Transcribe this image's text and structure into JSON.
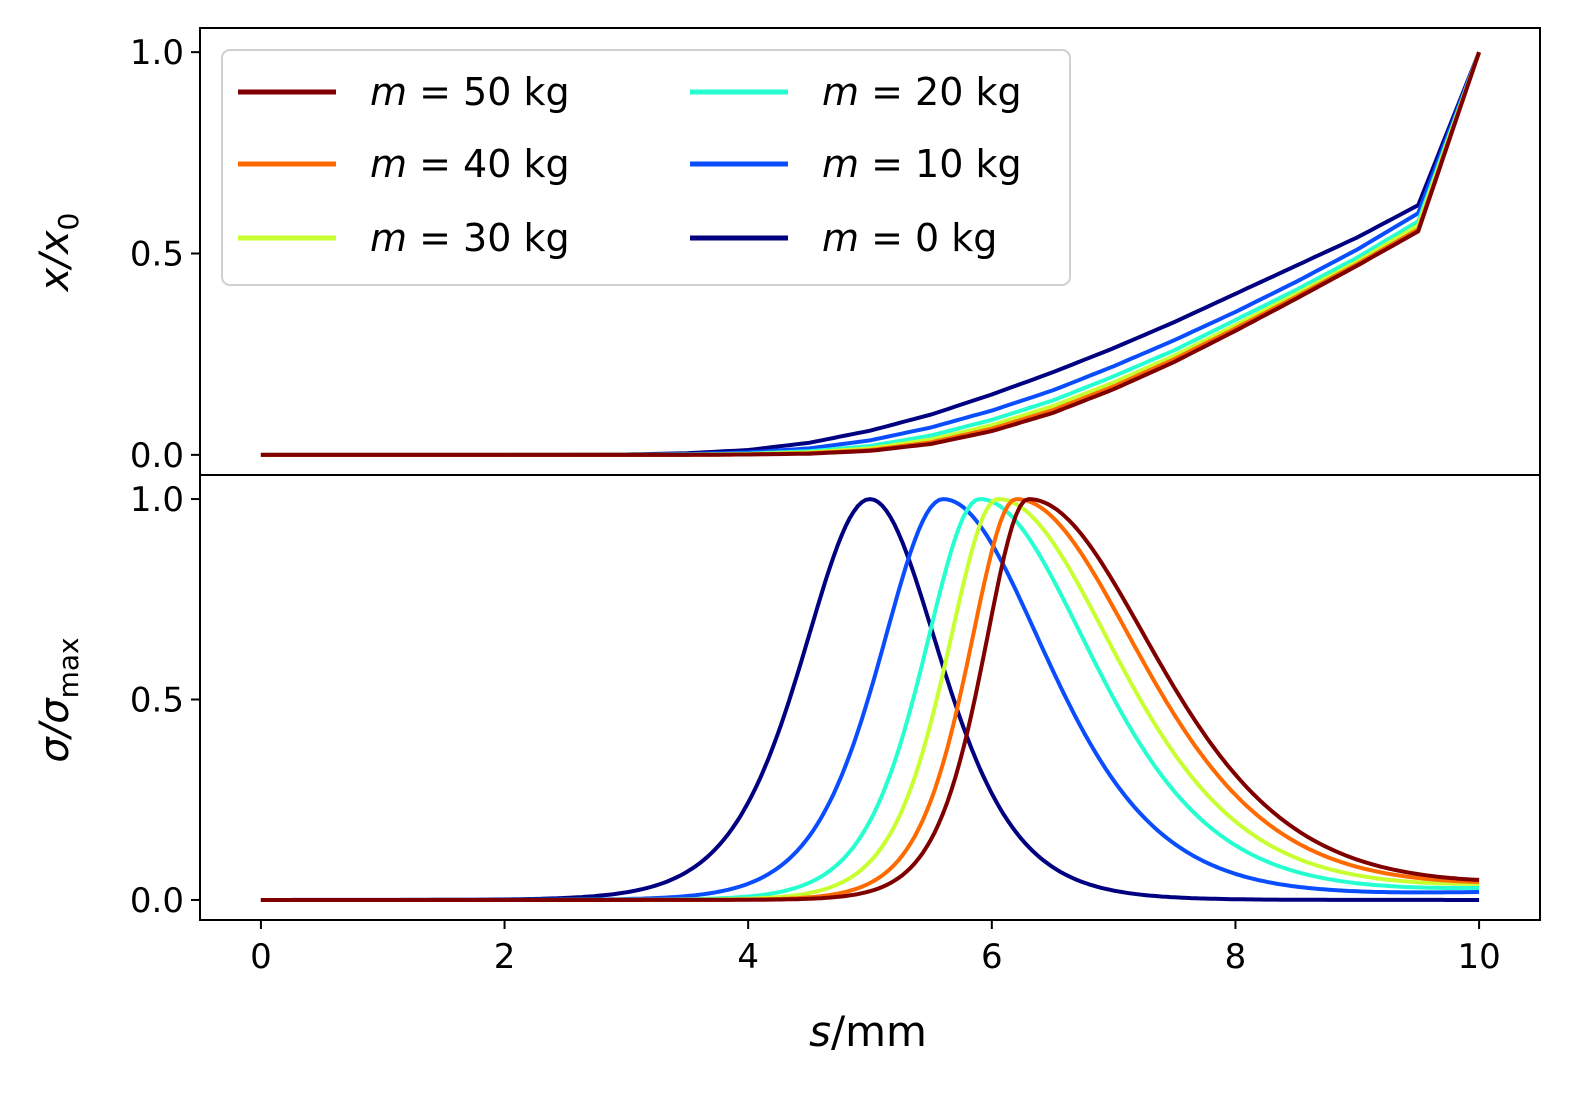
{
  "chart_data": [
    {
      "type": "line",
      "panel": "top",
      "ylabel": "x/x",
      "ylabel_sub": "0",
      "xlim": [
        -0.5,
        10.5
      ],
      "ylim": [
        -0.05,
        1.06
      ],
      "yticks": [
        0.0,
        0.5,
        1.0
      ],
      "ytick_labels": [
        "0.0",
        "0.5",
        "1.0"
      ],
      "legend": {
        "placement": "top-left",
        "columns": 2,
        "entries": [
          {
            "var": "m",
            "rest": " = 50 kg",
            "color": "#800000"
          },
          {
            "var": "m",
            "rest": " = 40 kg",
            "color": "#ff6a00"
          },
          {
            "var": "m",
            "rest": " = 30 kg",
            "color": "#c8ff30"
          },
          {
            "var": "m",
            "rest": " = 20 kg",
            "color": "#26ffd0"
          },
          {
            "var": "m",
            "rest": " = 10 kg",
            "color": "#0a4dff"
          },
          {
            "var": "m",
            "rest": " = 0 kg",
            "color": "#000080"
          }
        ]
      },
      "series": [
        {
          "name": "m = 0 kg",
          "mass": 0,
          "color": "#000080",
          "x": [
            0,
            1,
            2,
            3,
            3.5,
            4,
            4.5,
            5,
            5.5,
            6,
            6.5,
            7,
            7.5,
            8,
            8.5,
            9,
            9.5,
            10
          ],
          "y": [
            0,
            0,
            0,
            0.001,
            0.004,
            0.012,
            0.03,
            0.06,
            0.1,
            0.15,
            0.205,
            0.265,
            0.33,
            0.4,
            0.47,
            0.54,
            0.62,
            1.0
          ]
        },
        {
          "name": "m = 10 kg",
          "mass": 10,
          "color": "#0a4dff",
          "x": [
            0,
            1,
            2,
            3,
            3.5,
            4,
            4.5,
            5,
            5.5,
            6,
            6.5,
            7,
            7.5,
            8,
            8.5,
            9,
            9.5,
            10
          ],
          "y": [
            0,
            0,
            0,
            0,
            0.002,
            0.006,
            0.016,
            0.036,
            0.068,
            0.11,
            0.16,
            0.22,
            0.285,
            0.355,
            0.43,
            0.51,
            0.6,
            1.0
          ]
        },
        {
          "name": "m = 20 kg",
          "mass": 20,
          "color": "#26ffd0",
          "x": [
            0,
            1,
            2,
            3,
            3.5,
            4,
            4.5,
            5,
            5.5,
            6,
            6.5,
            7,
            7.5,
            8,
            8.5,
            9,
            9.5,
            10
          ],
          "y": [
            0,
            0,
            0,
            0,
            0.001,
            0.003,
            0.009,
            0.022,
            0.048,
            0.087,
            0.135,
            0.195,
            0.26,
            0.335,
            0.41,
            0.49,
            0.58,
            1.0
          ]
        },
        {
          "name": "m = 30 kg",
          "mass": 30,
          "color": "#c8ff30",
          "x": [
            0,
            1,
            2,
            3,
            3.5,
            4,
            4.5,
            5,
            5.5,
            6,
            6.5,
            7,
            7.5,
            8,
            8.5,
            9,
            9.5,
            10
          ],
          "y": [
            0,
            0,
            0,
            0,
            0,
            0.002,
            0.006,
            0.016,
            0.038,
            0.074,
            0.121,
            0.18,
            0.247,
            0.322,
            0.4,
            0.48,
            0.57,
            1.0
          ]
        },
        {
          "name": "m = 40 kg",
          "mass": 40,
          "color": "#ff6a00",
          "x": [
            0,
            1,
            2,
            3,
            3.5,
            4,
            4.5,
            5,
            5.5,
            6,
            6.5,
            7,
            7.5,
            8,
            8.5,
            9,
            9.5,
            10
          ],
          "y": [
            0,
            0,
            0,
            0,
            0,
            0.001,
            0.004,
            0.012,
            0.031,
            0.065,
            0.111,
            0.17,
            0.238,
            0.314,
            0.393,
            0.474,
            0.56,
            1.0
          ]
        },
        {
          "name": "m = 50 kg",
          "mass": 50,
          "color": "#800000",
          "x": [
            0,
            1,
            2,
            3,
            3.5,
            4,
            4.5,
            5,
            5.5,
            6,
            6.5,
            7,
            7.5,
            8,
            8.5,
            9,
            9.5,
            10
          ],
          "y": [
            0,
            0,
            0,
            0,
            0,
            0.001,
            0.003,
            0.01,
            0.027,
            0.059,
            0.104,
            0.163,
            0.231,
            0.308,
            0.388,
            0.47,
            0.555,
            1.0
          ]
        }
      ]
    },
    {
      "type": "line",
      "panel": "bottom",
      "ylabel": "σ/σ",
      "ylabel_sub": "max",
      "xlabel_var": "s",
      "xlabel_rest": "/mm",
      "xlim": [
        -0.5,
        10.5
      ],
      "ylim": [
        -0.05,
        1.06
      ],
      "xticks": [
        0,
        2,
        4,
        6,
        8,
        10
      ],
      "xtick_labels": [
        "0",
        "2",
        "4",
        "6",
        "8",
        "10"
      ],
      "yticks": [
        0.0,
        0.5,
        1.0
      ],
      "ytick_labels": [
        "0.0",
        "0.5",
        "1.0"
      ],
      "series": [
        {
          "name": "m = 0 kg",
          "mass": 0,
          "color": "#000080",
          "peak_s": 5.0,
          "left_width": 0.75,
          "right_width": 0.78,
          "end_value": 0.0
        },
        {
          "name": "m = 10 kg",
          "mass": 10,
          "color": "#0a4dff",
          "peak_s": 5.6,
          "left_width": 0.7,
          "right_width": 1.15,
          "end_value": 0.02
        },
        {
          "name": "m = 20 kg",
          "mass": 20,
          "color": "#26ffd0",
          "peak_s": 5.9,
          "left_width": 0.62,
          "right_width": 1.25,
          "end_value": 0.03
        },
        {
          "name": "m = 30 kg",
          "mass": 30,
          "color": "#c8ff30",
          "peak_s": 6.05,
          "left_width": 0.57,
          "right_width": 1.32,
          "end_value": 0.04
        },
        {
          "name": "m = 40 kg",
          "mass": 40,
          "color": "#ff6a00",
          "peak_s": 6.2,
          "left_width": 0.53,
          "right_width": 1.38,
          "end_value": 0.045
        },
        {
          "name": "m = 50 kg",
          "mass": 50,
          "color": "#800000",
          "peak_s": 6.3,
          "left_width": 0.5,
          "right_width": 1.42,
          "end_value": 0.05
        }
      ]
    }
  ]
}
